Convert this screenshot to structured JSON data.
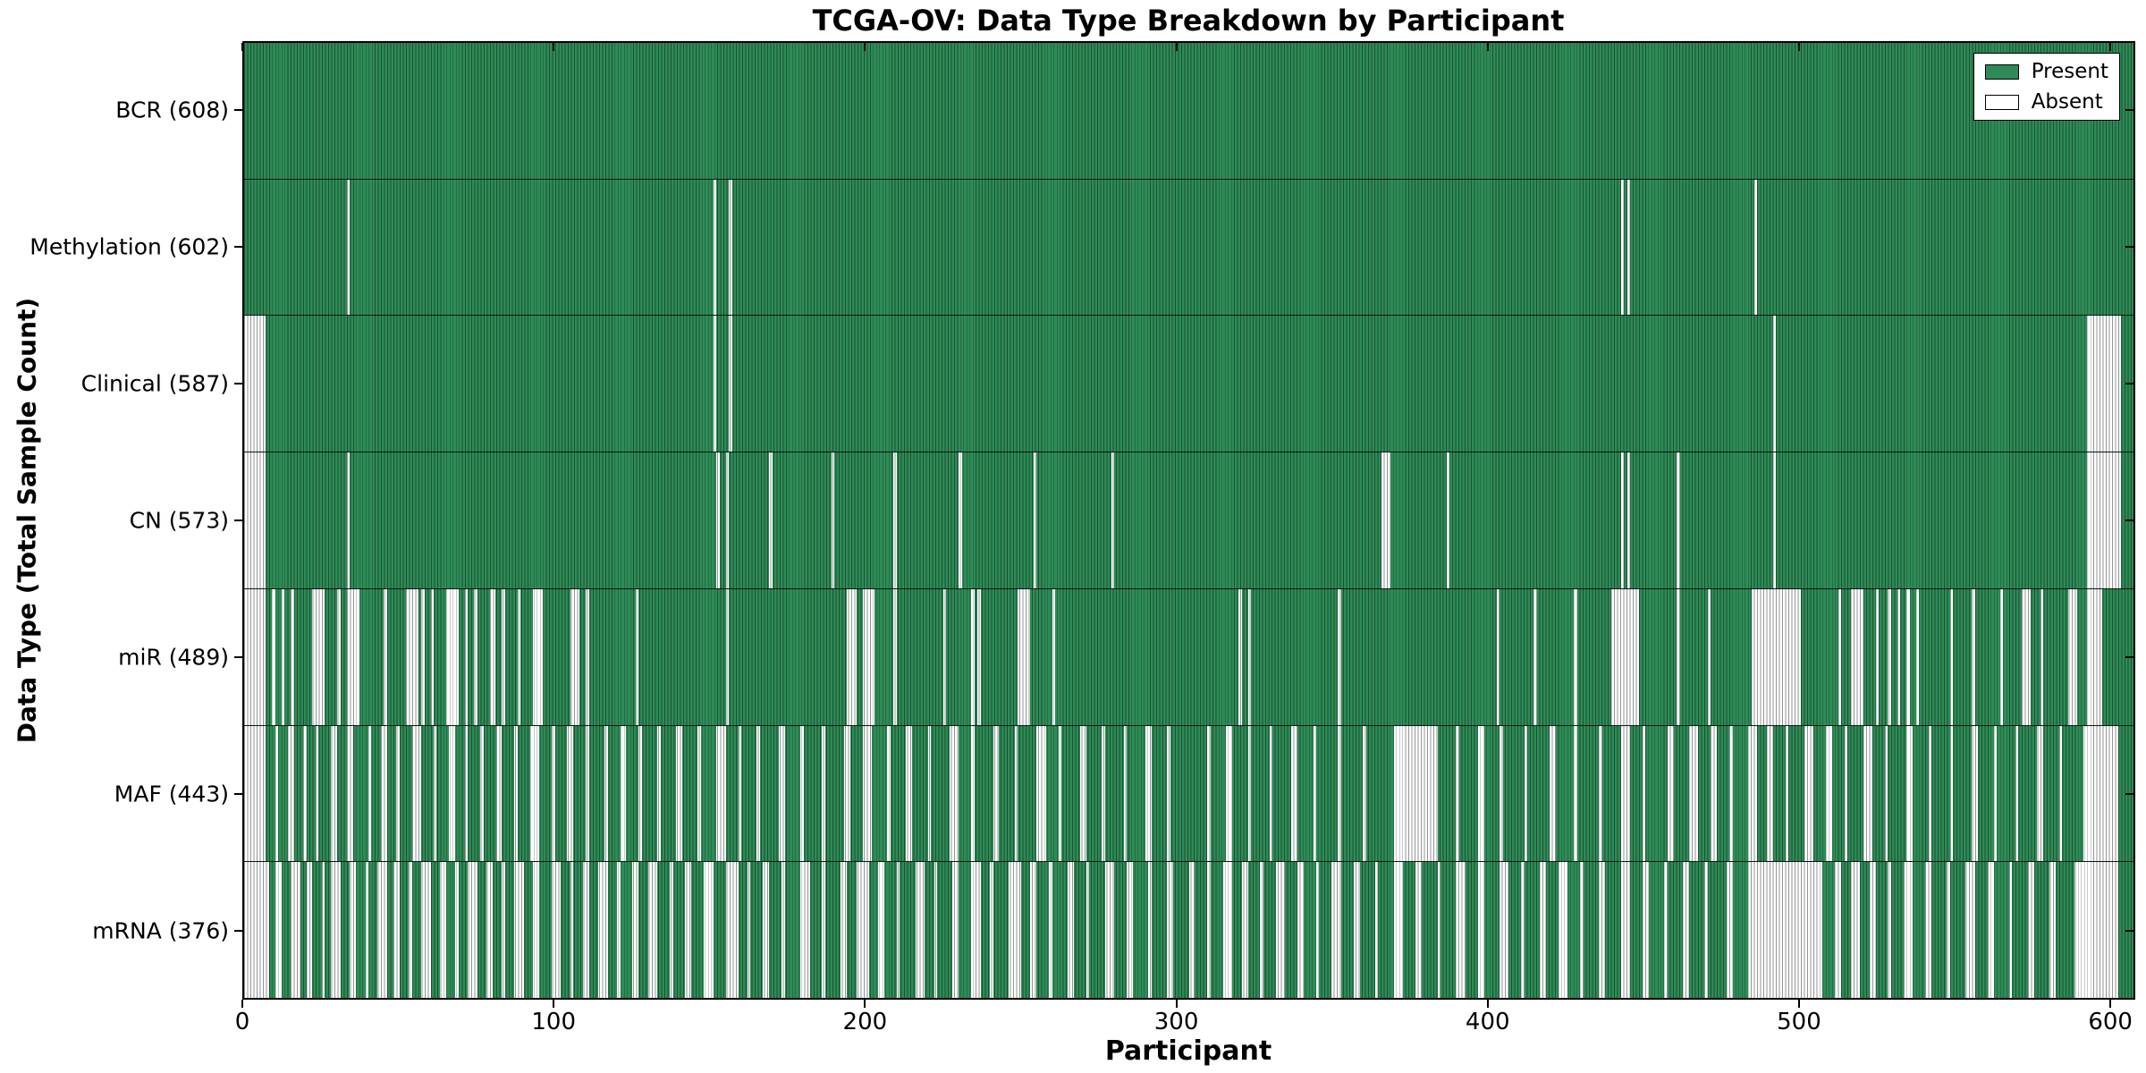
{
  "figure": {
    "title": "TCGA-OV: Data Type Breakdown by Participant",
    "xlabel": "Participant",
    "ylabel": "Data Type (Total Sample Count)"
  },
  "legend": {
    "items": [
      {
        "label": "Present",
        "swatch_color": "#2e8b57"
      },
      {
        "label": "Absent",
        "swatch_color": "#ffffff"
      }
    ]
  },
  "chart_data": {
    "type": "heatmap",
    "title": "TCGA-OV: Data Type Breakdown by Participant",
    "xlabel": "Participant",
    "ylabel": "Data Type (Total Sample Count)",
    "x_range": [
      0,
      608
    ],
    "n_participants": 608,
    "x_ticks": [
      0,
      100,
      200,
      300,
      400,
      500,
      600
    ],
    "grid": false,
    "legend_position": "upper right",
    "legend_entries": [
      "Present",
      "Absent"
    ],
    "colors": {
      "present": "#2e8b57",
      "absent": "#ffffff",
      "cell_edge": "#000000",
      "border": "#000000"
    },
    "rows": [
      {
        "data_type": "BCR",
        "label": "BCR (608)",
        "present_count": 608,
        "absent_count": 0,
        "absent_runs": []
      },
      {
        "data_type": "Methylation",
        "label": "Methylation (602)",
        "present_count": 602,
        "absent_count": 6,
        "absent_runs": [
          [
            33,
            1
          ],
          [
            151,
            1
          ],
          [
            156,
            1
          ],
          [
            443,
            1
          ],
          [
            445,
            1
          ],
          [
            486,
            1
          ]
        ]
      },
      {
        "data_type": "Clinical",
        "label": "Clinical (587)",
        "present_count": 587,
        "absent_count": 21,
        "absent_runs": [
          [
            0,
            7
          ],
          [
            151,
            1
          ],
          [
            156,
            1
          ],
          [
            492,
            1
          ],
          [
            593,
            11
          ]
        ]
      },
      {
        "data_type": "CN",
        "label": "CN (573)",
        "present_count": 573,
        "absent_count": 35,
        "absent_runs": [
          [
            0,
            7
          ],
          [
            33,
            1
          ],
          [
            152,
            1
          ],
          [
            155,
            1
          ],
          [
            169,
            1
          ],
          [
            189,
            1
          ],
          [
            209,
            1
          ],
          [
            230,
            1
          ],
          [
            254,
            1
          ],
          [
            279,
            1
          ],
          [
            366,
            3
          ],
          [
            387,
            1
          ],
          [
            443,
            1
          ],
          [
            445,
            1
          ],
          [
            461,
            1
          ],
          [
            492,
            1
          ],
          [
            593,
            11
          ]
        ]
      },
      {
        "data_type": "miR",
        "label": "miR (489)",
        "present_count": 489,
        "absent_count": 119,
        "absent_runs": [
          [
            0,
            7
          ],
          [
            9,
            1
          ],
          [
            12,
            1
          ],
          [
            15,
            1
          ],
          [
            22,
            4
          ],
          [
            30,
            1
          ],
          [
            33,
            4
          ],
          [
            45,
            1
          ],
          [
            52,
            4
          ],
          [
            57,
            1
          ],
          [
            60,
            1
          ],
          [
            65,
            4
          ],
          [
            71,
            1
          ],
          [
            74,
            1
          ],
          [
            79,
            2
          ],
          [
            83,
            1
          ],
          [
            88,
            1
          ],
          [
            93,
            3
          ],
          [
            105,
            3
          ],
          [
            110,
            1
          ],
          [
            126,
            1
          ],
          [
            155,
            1
          ],
          [
            194,
            3
          ],
          [
            199,
            4
          ],
          [
            209,
            1
          ],
          [
            225,
            1
          ],
          [
            234,
            1
          ],
          [
            236,
            1
          ],
          [
            249,
            4
          ],
          [
            260,
            1
          ],
          [
            320,
            1
          ],
          [
            323,
            1
          ],
          [
            352,
            1
          ],
          [
            403,
            1
          ],
          [
            415,
            1
          ],
          [
            428,
            1
          ],
          [
            440,
            9
          ],
          [
            461,
            1
          ],
          [
            471,
            1
          ],
          [
            485,
            16
          ],
          [
            513,
            1
          ],
          [
            517,
            4
          ],
          [
            525,
            1
          ],
          [
            529,
            1
          ],
          [
            532,
            1
          ],
          [
            535,
            1
          ],
          [
            538,
            1
          ],
          [
            549,
            1
          ],
          [
            556,
            1
          ],
          [
            565,
            1
          ],
          [
            572,
            3
          ],
          [
            578,
            1
          ],
          [
            587,
            3
          ],
          [
            593,
            5
          ]
        ]
      },
      {
        "data_type": "MAF",
        "label": "MAF (443)",
        "present_count": 443,
        "absent_count": 165,
        "absent_runs": [
          [
            0,
            7
          ],
          [
            10,
            1
          ],
          [
            14,
            2
          ],
          [
            19,
            1
          ],
          [
            23,
            1
          ],
          [
            28,
            2
          ],
          [
            33,
            2
          ],
          [
            40,
            1
          ],
          [
            44,
            2
          ],
          [
            49,
            1
          ],
          [
            54,
            3
          ],
          [
            61,
            1
          ],
          [
            66,
            2
          ],
          [
            71,
            1
          ],
          [
            76,
            1
          ],
          [
            81,
            2
          ],
          [
            87,
            1
          ],
          [
            92,
            3
          ],
          [
            99,
            1
          ],
          [
            104,
            2
          ],
          [
            110,
            1
          ],
          [
            116,
            1
          ],
          [
            121,
            2
          ],
          [
            127,
            1
          ],
          [
            133,
            1
          ],
          [
            139,
            2
          ],
          [
            146,
            1
          ],
          [
            152,
            3
          ],
          [
            159,
            1
          ],
          [
            165,
            1
          ],
          [
            172,
            2
          ],
          [
            179,
            1
          ],
          [
            186,
            1
          ],
          [
            193,
            2
          ],
          [
            199,
            3
          ],
          [
            207,
            1
          ],
          [
            213,
            2
          ],
          [
            220,
            1
          ],
          [
            227,
            3
          ],
          [
            234,
            1
          ],
          [
            241,
            2
          ],
          [
            248,
            1
          ],
          [
            255,
            3
          ],
          [
            262,
            1
          ],
          [
            269,
            2
          ],
          [
            276,
            1
          ],
          [
            283,
            1
          ],
          [
            290,
            2
          ],
          [
            297,
            1
          ],
          [
            310,
            1
          ],
          [
            316,
            2
          ],
          [
            323,
            1
          ],
          [
            330,
            1
          ],
          [
            337,
            2
          ],
          [
            344,
            1
          ],
          [
            352,
            1
          ],
          [
            360,
            1
          ],
          [
            370,
            14
          ],
          [
            390,
            1
          ],
          [
            397,
            2
          ],
          [
            404,
            1
          ],
          [
            412,
            1
          ],
          [
            420,
            2
          ],
          [
            428,
            1
          ],
          [
            436,
            1
          ],
          [
            443,
            3
          ],
          [
            450,
            1
          ],
          [
            458,
            2
          ],
          [
            465,
            3
          ],
          [
            472,
            2
          ],
          [
            478,
            1
          ],
          [
            484,
            3
          ],
          [
            490,
            2
          ],
          [
            496,
            1
          ],
          [
            502,
            3
          ],
          [
            509,
            2
          ],
          [
            515,
            1
          ],
          [
            521,
            3
          ],
          [
            528,
            1
          ],
          [
            535,
            2
          ],
          [
            542,
            1
          ],
          [
            549,
            1
          ],
          [
            556,
            2
          ],
          [
            563,
            1
          ],
          [
            570,
            1
          ],
          [
            577,
            2
          ],
          [
            584,
            1
          ],
          [
            592,
            11
          ]
        ]
      },
      {
        "data_type": "mRNA",
        "label": "mRNA (376)",
        "present_count": 376,
        "absent_count": 232,
        "absent_runs": [
          [
            0,
            8
          ],
          [
            10,
            2
          ],
          [
            15,
            3
          ],
          [
            20,
            2
          ],
          [
            25,
            1
          ],
          [
            28,
            3
          ],
          [
            34,
            2
          ],
          [
            39,
            1
          ],
          [
            43,
            3
          ],
          [
            48,
            2
          ],
          [
            53,
            1
          ],
          [
            57,
            3
          ],
          [
            63,
            2
          ],
          [
            68,
            1
          ],
          [
            72,
            3
          ],
          [
            78,
            2
          ],
          [
            83,
            1
          ],
          [
            87,
            3
          ],
          [
            93,
            2
          ],
          [
            99,
            3
          ],
          [
            105,
            1
          ],
          [
            109,
            2
          ],
          [
            114,
            3
          ],
          [
            120,
            1
          ],
          [
            125,
            2
          ],
          [
            130,
            3
          ],
          [
            137,
            1
          ],
          [
            142,
            2
          ],
          [
            148,
            3
          ],
          [
            155,
            4
          ],
          [
            162,
            1
          ],
          [
            167,
            2
          ],
          [
            173,
            1
          ],
          [
            179,
            3
          ],
          [
            186,
            1
          ],
          [
            192,
            2
          ],
          [
            197,
            4
          ],
          [
            204,
            2
          ],
          [
            210,
            1
          ],
          [
            216,
            3
          ],
          [
            222,
            1
          ],
          [
            228,
            2
          ],
          [
            234,
            3
          ],
          [
            240,
            1
          ],
          [
            246,
            4
          ],
          [
            253,
            2
          ],
          [
            259,
            1
          ],
          [
            265,
            2
          ],
          [
            271,
            1
          ],
          [
            277,
            3
          ],
          [
            284,
            2
          ],
          [
            291,
            1
          ],
          [
            297,
            2
          ],
          [
            304,
            2
          ],
          [
            310,
            1
          ],
          [
            315,
            3
          ],
          [
            321,
            2
          ],
          [
            327,
            1
          ],
          [
            332,
            3
          ],
          [
            339,
            2
          ],
          [
            345,
            1
          ],
          [
            350,
            3
          ],
          [
            357,
            2
          ],
          [
            364,
            1
          ],
          [
            370,
            3
          ],
          [
            377,
            2
          ],
          [
            384,
            1
          ],
          [
            390,
            3
          ],
          [
            397,
            2
          ],
          [
            404,
            3
          ],
          [
            411,
            1
          ],
          [
            417,
            2
          ],
          [
            423,
            3
          ],
          [
            430,
            1
          ],
          [
            436,
            2
          ],
          [
            443,
            3
          ],
          [
            450,
            2
          ],
          [
            457,
            1
          ],
          [
            463,
            2
          ],
          [
            470,
            1
          ],
          [
            477,
            2
          ],
          [
            484,
            24
          ],
          [
            512,
            2
          ],
          [
            517,
            3
          ],
          [
            523,
            2
          ],
          [
            529,
            1
          ],
          [
            534,
            3
          ],
          [
            541,
            2
          ],
          [
            548,
            1
          ],
          [
            554,
            3
          ],
          [
            561,
            2
          ],
          [
            568,
            1
          ],
          [
            574,
            2
          ],
          [
            581,
            2
          ],
          [
            589,
            14
          ]
        ]
      }
    ]
  }
}
